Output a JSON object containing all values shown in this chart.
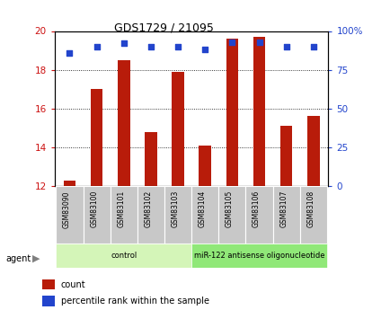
{
  "title": "GDS1729 / 21095",
  "samples": [
    "GSM83090",
    "GSM83100",
    "GSM83101",
    "GSM83102",
    "GSM83103",
    "GSM83104",
    "GSM83105",
    "GSM83106",
    "GSM83107",
    "GSM83108"
  ],
  "count_values": [
    12.3,
    17.0,
    18.5,
    14.8,
    17.9,
    14.1,
    19.6,
    19.7,
    15.1,
    15.6
  ],
  "percentile_values": [
    86,
    90,
    92,
    90,
    90,
    88,
    93,
    93,
    90,
    90
  ],
  "ylim_left": [
    12,
    20
  ],
  "ylim_right": [
    0,
    100
  ],
  "yticks_left": [
    12,
    14,
    16,
    18,
    20
  ],
  "yticks_right": [
    0,
    25,
    50,
    75,
    100
  ],
  "ytick_labels_right": [
    "0",
    "25",
    "50",
    "75",
    "100%"
  ],
  "bar_color": "#b81c0a",
  "dot_color": "#2244cc",
  "agent_groups": [
    {
      "label": "control",
      "start": 0,
      "end": 5,
      "color": "#d4f5b8"
    },
    {
      "label": "miR-122 antisense oligonucleotide",
      "start": 5,
      "end": 10,
      "color": "#90e878"
    }
  ],
  "legend_items": [
    {
      "color": "#b81c0a",
      "label": "count"
    },
    {
      "color": "#2244cc",
      "label": "percentile rank within the sample"
    }
  ],
  "agent_label": "agent",
  "background_color": "#ffffff",
  "tick_label_color_left": "#cc1010",
  "tick_label_color_right": "#2244cc",
  "bar_width": 0.45,
  "xlim": [
    -0.55,
    9.55
  ]
}
